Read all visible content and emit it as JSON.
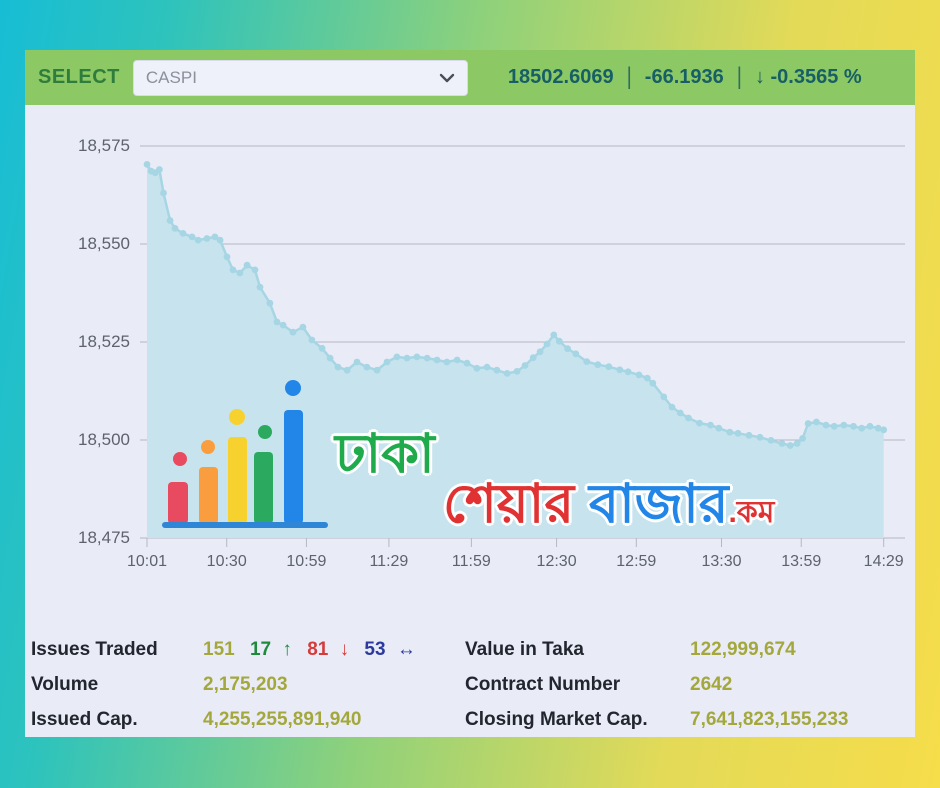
{
  "header": {
    "select_label": "SELECT",
    "dropdown_value": "CASPI",
    "index_value": "18502.6069",
    "separator": "|",
    "change_value": "-66.1936",
    "change_arrow": "↓",
    "change_percent": "-0.3565 %"
  },
  "watermark": {
    "line1": "ঢাকা",
    "word_share": "শেয়ার ",
    "word_bazar": "বাজার",
    "word_dotcom": ".কম"
  },
  "stats": {
    "left": [
      {
        "label": "Issues Traded"
      },
      {
        "label": "Volume",
        "value": "2,175,203"
      },
      {
        "label": "Issued Cap.",
        "value": "4,255,255,891,940"
      }
    ],
    "issues": {
      "total": "151",
      "up": "17",
      "up_arrow": "↑",
      "down": "81",
      "down_arrow": "↓",
      "unchanged": "53",
      "unchanged_arrow": "↔"
    },
    "right": [
      {
        "label": "Value in Taka",
        "value": "122,999,674"
      },
      {
        "label": "Contract Number",
        "value": "2642"
      },
      {
        "label": "Closing Market Cap.",
        "value": "7,641,823,155,233"
      }
    ]
  },
  "colors": {
    "header_bg": "#8cc863",
    "select_text": "#2f7d3c",
    "quote_text": "#175f66",
    "card_bg": "#e9ecf7",
    "gridline": "#b5b8c2",
    "axis_text": "#5d626b",
    "area_fill": "#c7e3ee",
    "area_line": "#a6d6e4",
    "value_olive": "#a4a83c",
    "up_green": "#1e8a3c",
    "down_red": "#d53b3b",
    "unchanged_blue": "#2c3a9e",
    "logo_red": "#e84a5f",
    "logo_orange": "#f99d3e",
    "logo_yellow": "#f7d22e",
    "logo_green": "#2baa5f",
    "logo_blue": "#2186e8",
    "logo_baseline": "#2f86d6",
    "bengali_green": "#1faa4b",
    "bengali_red": "#e03232",
    "bengali_blue": "#2186e8"
  },
  "chart_data": {
    "type": "area",
    "title": "CASPI intraday index curve",
    "x_ticks": [
      "10:01",
      "10:30",
      "10:59",
      "11:29",
      "11:59",
      "12:30",
      "12:59",
      "13:30",
      "13:59",
      "14:29"
    ],
    "x_tick_minutes": [
      0,
      29,
      58,
      88,
      118,
      149,
      178,
      209,
      238,
      268
    ],
    "y_ticks": [
      "18,575",
      "18,550",
      "18,525",
      "18,500",
      "18,475"
    ],
    "ylim": [
      18475,
      18575
    ],
    "xlim_minutes": [
      0,
      268
    ],
    "grid": "horizontal",
    "legend": "none",
    "points": [
      [
        0,
        18570.3
      ],
      [
        1.5,
        18568.6
      ],
      [
        3,
        18568.2
      ],
      [
        4.5,
        18569.0
      ],
      [
        6,
        18563.0
      ],
      [
        8.4,
        18556.0
      ],
      [
        10.2,
        18554.0
      ],
      [
        13.1,
        18552.7
      ],
      [
        16.4,
        18551.8
      ],
      [
        18.6,
        18551.0
      ],
      [
        21.8,
        18551.4
      ],
      [
        24.7,
        18551.8
      ],
      [
        26.6,
        18551.0
      ],
      [
        29.1,
        18546.7
      ],
      [
        31.3,
        18543.4
      ],
      [
        33.8,
        18542.6
      ],
      [
        36.4,
        18544.6
      ],
      [
        39.3,
        18543.4
      ],
      [
        41.1,
        18539.0
      ],
      [
        44.7,
        18534.9
      ],
      [
        47.3,
        18530.1
      ],
      [
        49.5,
        18529.3
      ],
      [
        53.1,
        18527.5
      ],
      [
        56.7,
        18528.8
      ],
      [
        60,
        18525.5
      ],
      [
        63.7,
        18523.4
      ],
      [
        66.6,
        18520.9
      ],
      [
        69.5,
        18518.6
      ],
      [
        72.8,
        18517.8
      ],
      [
        76.4,
        18519.9
      ],
      [
        80,
        18518.6
      ],
      [
        83.7,
        18517.8
      ],
      [
        87.3,
        18519.9
      ],
      [
        90.9,
        18521.2
      ],
      [
        94.6,
        18520.9
      ],
      [
        98.2,
        18521.2
      ],
      [
        101.9,
        18520.9
      ],
      [
        105.5,
        18520.4
      ],
      [
        109.1,
        18519.9
      ],
      [
        112.8,
        18520.4
      ],
      [
        116.4,
        18519.6
      ],
      [
        120,
        18518.3
      ],
      [
        123.7,
        18518.6
      ],
      [
        127.3,
        18517.8
      ],
      [
        131,
        18517.0
      ],
      [
        134.6,
        18517.5
      ],
      [
        137.5,
        18519.0
      ],
      [
        140.5,
        18521.0
      ],
      [
        143,
        18522.5
      ],
      [
        145.5,
        18524.5
      ],
      [
        148,
        18526.8
      ],
      [
        150,
        18525.2
      ],
      [
        153,
        18523.3
      ],
      [
        156,
        18522.0
      ],
      [
        160,
        18520.0
      ],
      [
        164,
        18519.2
      ],
      [
        168,
        18518.7
      ],
      [
        172,
        18517.9
      ],
      [
        175,
        18517.4
      ],
      [
        179,
        18516.6
      ],
      [
        182,
        18515.8
      ],
      [
        184,
        18514.5
      ],
      [
        188,
        18511.0
      ],
      [
        191,
        18508.4
      ],
      [
        194,
        18506.9
      ],
      [
        197,
        18505.6
      ],
      [
        201,
        18504.3
      ],
      [
        205,
        18503.8
      ],
      [
        208,
        18503.0
      ],
      [
        212,
        18502.0
      ],
      [
        215,
        18501.7
      ],
      [
        219,
        18501.2
      ],
      [
        223,
        18500.7
      ],
      [
        227,
        18499.9
      ],
      [
        231,
        18499.1
      ],
      [
        234,
        18498.6
      ],
      [
        236.5,
        18499.1
      ],
      [
        238.5,
        18500.4
      ],
      [
        240.5,
        18504.2
      ],
      [
        243.5,
        18504.6
      ],
      [
        247,
        18503.8
      ],
      [
        250,
        18503.5
      ],
      [
        253.5,
        18503.8
      ],
      [
        257,
        18503.5
      ],
      [
        260,
        18503.0
      ],
      [
        263,
        18503.5
      ],
      [
        266,
        18503.0
      ],
      [
        268,
        18502.6
      ]
    ]
  }
}
